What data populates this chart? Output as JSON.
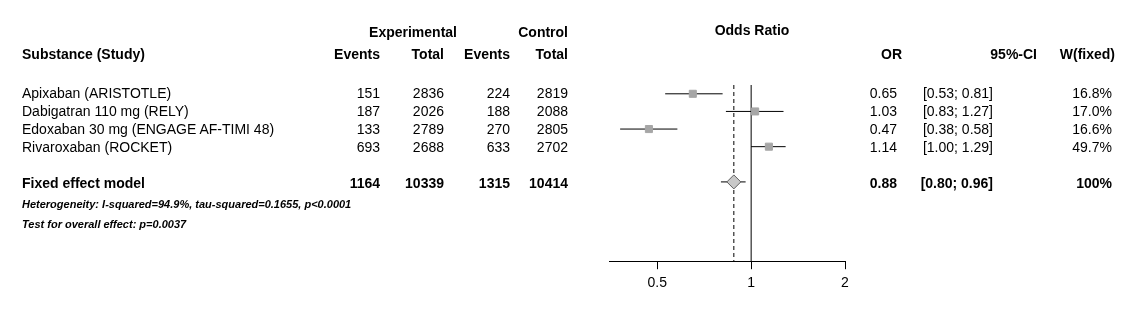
{
  "chart_data": [
    {
      "type": "other",
      "annotations": [
        "Experimental",
        "Control",
        "Substance (Study)",
        "Events",
        "Total",
        "Events",
        "Total",
        "Apixaban (ARISTOTLE)",
        "151",
        "2836",
        "224",
        "2819",
        "Dabigatran 110 mg (RELY)",
        "187",
        "2026",
        "188",
        "2088",
        "Edoxaban 30 mg (ENGAGE AF-TIMI 48)",
        "133",
        "2789",
        "270",
        "2805",
        "Rivaroxaban (ROCKET)",
        "693",
        "2688",
        "633",
        "2702",
        "Fixed effect model",
        "1164",
        "10339",
        "1315",
        "10414",
        "Heterogeneity: I-squared=94.9%, tau-squared=0.1655, p<0.0001",
        "Test for overall effect:  p=0.0037"
      ]
    },
    {
      "type": "scatter",
      "title": "Odds Ratio",
      "orientation": "horizontal",
      "categories": [
        null,
        null,
        null,
        null,
        null,
        null,
        null,
        null,
        null,
        null
      ],
      "series": [
        {
          "color": "#a6a6a6",
          "marker": "square",
          "values": [
            0.65,
            1.03,
            0.47,
            1.14,
            null,
            null,
            null,
            null,
            null,
            null
          ],
          "errors": [
            [
              0.53,
              0.81
            ],
            [
              0.83,
              1.27
            ],
            [
              0.38,
              0.58
            ],
            [
              1.0,
              1.29
            ],
            null,
            null,
            null,
            null,
            null,
            null
          ]
        },
        {
          "color": "#c8c8c8",
          "marker": "diamond",
          "values": [
            null,
            null,
            null,
            null,
            null,
            0.88,
            null,
            null,
            null,
            null
          ],
          "errors": [
            null,
            null,
            null,
            null,
            null,
            [
              0.8,
              0.96
            ],
            null,
            null,
            null,
            null
          ]
        }
      ],
      "log": "x",
      "xlim": [
        0.35,
        2
      ],
      "xticks": [
        0.5,
        1,
        2
      ],
      "ref_lines": [
        {
          "axis": "x",
          "value": 1
        },
        {
          "axis": "x",
          "value": 0.88,
          "line_style": "dashed"
        }
      ],
      "tick_labels": "x",
      "grid": false,
      "legend": false
    },
    {
      "type": "other",
      "annotations": [
        "OR",
        "95%-CI",
        "W(fixed)",
        "0.65",
        "[0.53; 0.81]",
        "16.8%",
        "1.03",
        "[0.83; 1.27]",
        "17.0%",
        "0.47",
        "[0.38; 0.58]",
        "16.6%",
        "1.14",
        "[1.00; 1.29]",
        "49.7%",
        "0.88",
        "[0.80; 0.96]",
        "100%"
      ]
    }
  ]
}
